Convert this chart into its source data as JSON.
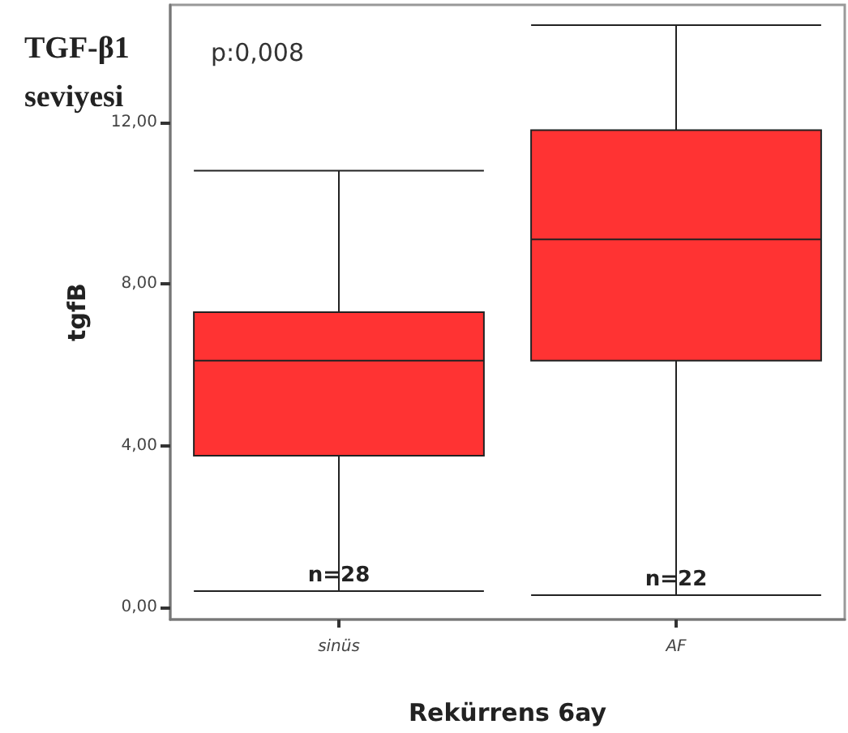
{
  "chart_data": {
    "type": "box",
    "title": "TGF-β1 seviyesi",
    "xlabel": "Rekürrens 6ay",
    "ylabel": "tgfB",
    "categories": [
      "sinüs",
      "AF"
    ],
    "boxes": [
      {
        "low": 0.4,
        "q1": 3.75,
        "median": 6.1,
        "q3": 7.3,
        "high": 10.8
      },
      {
        "low": 0.3,
        "q1": 6.1,
        "median": 9.1,
        "q3": 11.8,
        "high": 14.4
      }
    ],
    "color": "#ff3333",
    "ylim": [
      -0.3,
      14.9
    ],
    "yticks": [
      {
        "value": 0,
        "label": "0,00"
      },
      {
        "value": 4,
        "label": "4,00"
      },
      {
        "value": 8,
        "label": "8,00"
      },
      {
        "value": 12,
        "label": "12,00"
      }
    ],
    "grid": false,
    "annotations": [
      "p:0,008",
      {
        "text": "n=28",
        "x": "sinüs",
        "y": 0.4
      },
      {
        "text": "n=22",
        "x": "AF",
        "y": 0.3
      }
    ]
  }
}
